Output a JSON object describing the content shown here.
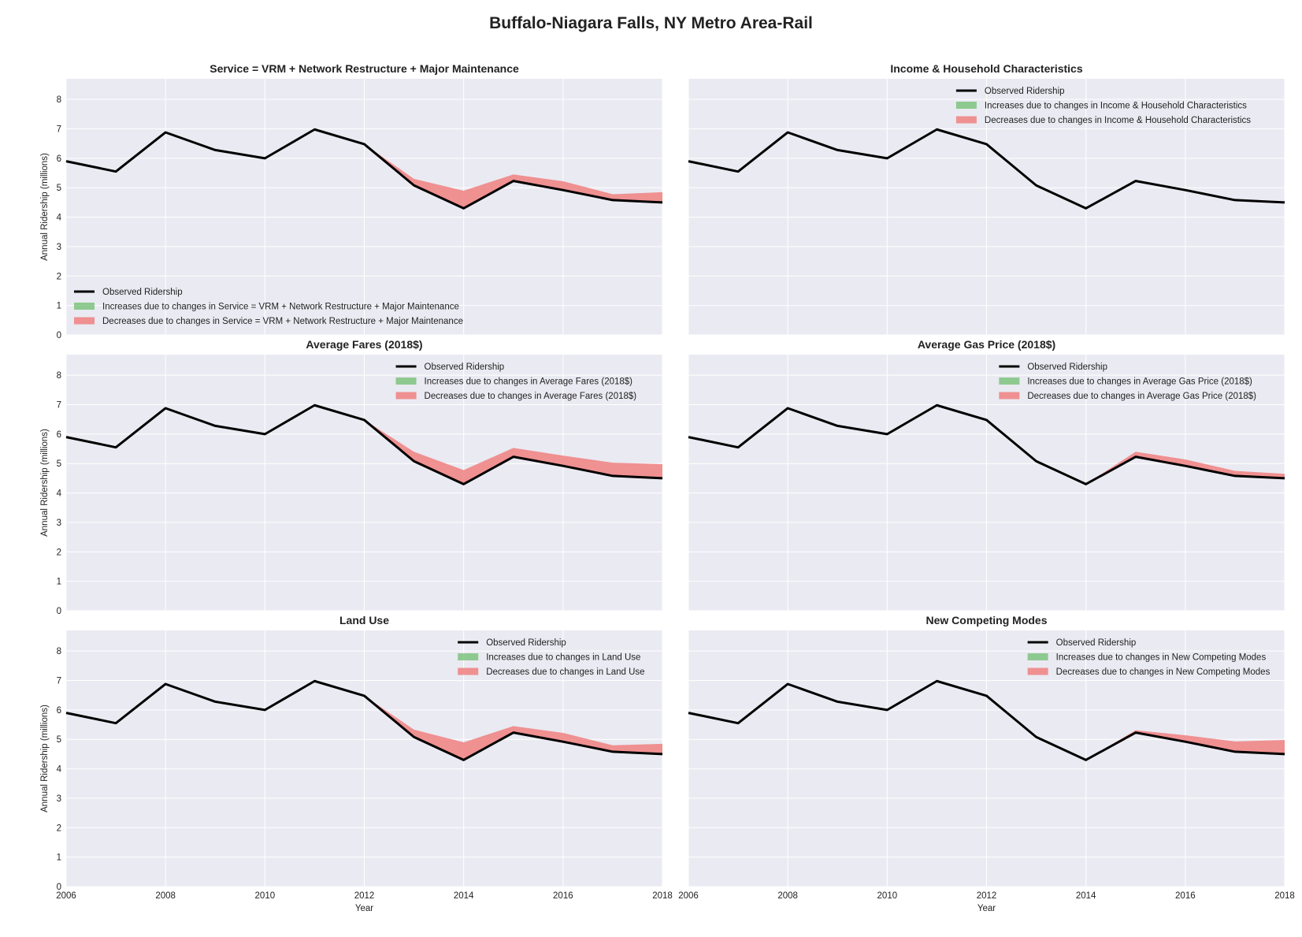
{
  "figure": {
    "title": "Buffalo-Niagara Falls, NY Metro Area-Rail"
  },
  "colors": {
    "observed": "#000000",
    "increase": "#66bb66",
    "decrease": "#f08080",
    "panel_bg": "#eaeaf2"
  },
  "chart_data": [
    {
      "type": "area",
      "title": "Service = VRM + Network Restructure + Major Maintenance",
      "xlabel": "",
      "ylabel": "Annual Ridership (millions)",
      "xlim": [
        2006,
        2018
      ],
      "ylim": [
        0,
        8.7
      ],
      "legend_position": "lower-left",
      "x": [
        2006,
        2007,
        2008,
        2009,
        2010,
        2011,
        2012,
        2013,
        2014,
        2015,
        2016,
        2017,
        2018
      ],
      "series": [
        {
          "name": "Observed Ridership",
          "values": [
            5.9,
            5.55,
            6.88,
            6.28,
            6.0,
            6.98,
            6.48,
            5.08,
            4.3,
            5.23,
            4.92,
            4.58,
            4.5
          ]
        },
        {
          "name": "Increases due to changes in Service = VRM + Network Restructure + Major Maintenance",
          "values": [
            0,
            0,
            0,
            0,
            0,
            0,
            0,
            0,
            0,
            0,
            0,
            0,
            0
          ]
        },
        {
          "name": "Decreases due to changes in Service = VRM + Network Restructure + Major Maintenance",
          "values": [
            0,
            0,
            0,
            0,
            0,
            0,
            0,
            0.22,
            0.6,
            0.22,
            0.3,
            0.2,
            0.35
          ]
        }
      ]
    },
    {
      "type": "area",
      "title": "Income & Household Characteristics",
      "xlabel": "",
      "ylabel": "",
      "xlim": [
        2006,
        2018
      ],
      "ylim": [
        0,
        8.7
      ],
      "legend_position": "upper-right",
      "x": [
        2006,
        2007,
        2008,
        2009,
        2010,
        2011,
        2012,
        2013,
        2014,
        2015,
        2016,
        2017,
        2018
      ],
      "series": [
        {
          "name": "Observed Ridership",
          "values": [
            5.9,
            5.55,
            6.88,
            6.28,
            6.0,
            6.98,
            6.48,
            5.08,
            4.3,
            5.23,
            4.92,
            4.58,
            4.5
          ]
        },
        {
          "name": "Increases due to changes in Income & Household Characteristics",
          "values": [
            0,
            0,
            0,
            0,
            0,
            0,
            0,
            0,
            0,
            0,
            0,
            0,
            0
          ]
        },
        {
          "name": "Decreases due to changes in Income & Household Characteristics",
          "values": [
            0,
            0,
            0,
            0,
            0,
            0,
            0,
            0,
            0,
            0,
            0,
            0,
            0
          ]
        }
      ]
    },
    {
      "type": "area",
      "title": "Average Fares (2018$)",
      "xlabel": "",
      "ylabel": "Annual Ridership (millions)",
      "xlim": [
        2006,
        2018
      ],
      "ylim": [
        0,
        8.7
      ],
      "legend_position": "upper-right",
      "x": [
        2006,
        2007,
        2008,
        2009,
        2010,
        2011,
        2012,
        2013,
        2014,
        2015,
        2016,
        2017,
        2018
      ],
      "series": [
        {
          "name": "Observed Ridership",
          "values": [
            5.9,
            5.55,
            6.88,
            6.28,
            6.0,
            6.98,
            6.48,
            5.08,
            4.3,
            5.23,
            4.92,
            4.58,
            4.5
          ]
        },
        {
          "name": "Increases due to changes in Average Fares (2018$)",
          "values": [
            0,
            0,
            0,
            0,
            0,
            0,
            0,
            0,
            0,
            0,
            0,
            0,
            0
          ]
        },
        {
          "name": "Decreases due to changes in Average Fares (2018$)",
          "values": [
            0,
            0,
            0,
            0,
            0,
            0,
            0,
            0.32,
            0.48,
            0.3,
            0.35,
            0.45,
            0.48
          ]
        }
      ]
    },
    {
      "type": "area",
      "title": "Average Gas Price (2018$)",
      "xlabel": "",
      "ylabel": "",
      "xlim": [
        2006,
        2018
      ],
      "ylim": [
        0,
        8.7
      ],
      "legend_position": "upper-right",
      "x": [
        2006,
        2007,
        2008,
        2009,
        2010,
        2011,
        2012,
        2013,
        2014,
        2015,
        2016,
        2017,
        2018
      ],
      "series": [
        {
          "name": "Observed Ridership",
          "values": [
            5.9,
            5.55,
            6.88,
            6.28,
            6.0,
            6.98,
            6.48,
            5.08,
            4.3,
            5.23,
            4.92,
            4.58,
            4.5
          ]
        },
        {
          "name": "Increases due to changes in Average Gas Price (2018$)",
          "values": [
            0,
            0,
            0,
            0,
            0,
            0,
            0,
            0,
            0,
            0,
            0,
            0,
            0
          ]
        },
        {
          "name": "Decreases due to changes in Average Gas Price (2018$)",
          "values": [
            0,
            0,
            0,
            0,
            0,
            0,
            0,
            0,
            0,
            0.17,
            0.22,
            0.17,
            0.15
          ]
        }
      ]
    },
    {
      "type": "area",
      "title": "Land Use",
      "xlabel": "Year",
      "ylabel": "Annual Ridership (millions)",
      "xlim": [
        2006,
        2018
      ],
      "ylim": [
        0,
        8.7
      ],
      "legend_position": "upper-right",
      "x": [
        2006,
        2007,
        2008,
        2009,
        2010,
        2011,
        2012,
        2013,
        2014,
        2015,
        2016,
        2017,
        2018
      ],
      "series": [
        {
          "name": "Observed Ridership",
          "values": [
            5.9,
            5.55,
            6.88,
            6.28,
            6.0,
            6.98,
            6.48,
            5.08,
            4.3,
            5.23,
            4.92,
            4.58,
            4.5
          ]
        },
        {
          "name": "Increases due to changes in Land Use",
          "values": [
            0,
            0,
            0,
            0,
            0,
            0,
            0,
            0,
            0,
            0,
            0,
            0,
            0
          ]
        },
        {
          "name": "Decreases due to changes in Land Use",
          "values": [
            0,
            0,
            0,
            0,
            0,
            0,
            0,
            0.25,
            0.6,
            0.22,
            0.3,
            0.22,
            0.35
          ]
        }
      ]
    },
    {
      "type": "area",
      "title": "New Competing Modes",
      "xlabel": "Year",
      "ylabel": "",
      "xlim": [
        2006,
        2018
      ],
      "ylim": [
        0,
        8.7
      ],
      "legend_position": "upper-right",
      "x": [
        2006,
        2007,
        2008,
        2009,
        2010,
        2011,
        2012,
        2013,
        2014,
        2015,
        2016,
        2017,
        2018
      ],
      "series": [
        {
          "name": "Observed Ridership",
          "values": [
            5.9,
            5.55,
            6.88,
            6.28,
            6.0,
            6.98,
            6.48,
            5.08,
            4.3,
            5.23,
            4.92,
            4.58,
            4.5
          ]
        },
        {
          "name": "Increases due to changes in New Competing Modes",
          "values": [
            0,
            0,
            0,
            0,
            0,
            0,
            0,
            0,
            0,
            0,
            0,
            0,
            0
          ]
        },
        {
          "name": "Decreases due to changes in New Competing Modes",
          "values": [
            0,
            0,
            0,
            0,
            0,
            0,
            0,
            0,
            0,
            0.08,
            0.22,
            0.35,
            0.48
          ]
        }
      ]
    }
  ],
  "axis": {
    "x_ticks": [
      2006,
      2008,
      2010,
      2012,
      2014,
      2016,
      2018
    ],
    "y_ticks": [
      0,
      1,
      2,
      3,
      4,
      5,
      6,
      7,
      8
    ]
  }
}
